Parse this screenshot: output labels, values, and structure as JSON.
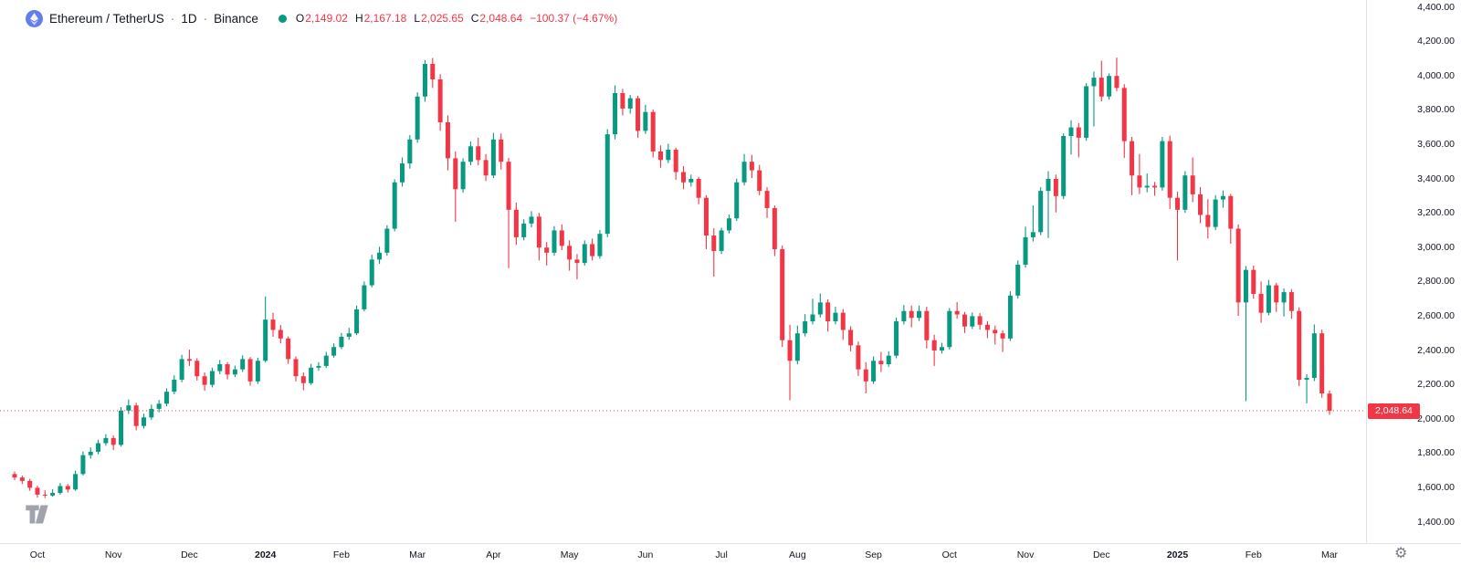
{
  "header": {
    "symbol": "Ethereum / TetherUS",
    "separator": "·",
    "interval": "1D",
    "exchange": "Binance",
    "legend": {
      "o_label": "O",
      "o_value": "2,149.02",
      "h_label": "H",
      "h_value": "2,167.18",
      "l_label": "L",
      "l_value": "2,025.65",
      "c_label": "C",
      "c_value": "2,048.64",
      "change": "−100.37 (−4.67%)"
    }
  },
  "colors": {
    "up": "#089981",
    "down": "#F23645",
    "text": "#131722",
    "muted": "#787B86",
    "border": "#E0E3EB",
    "badge_bg": "#F23645",
    "badge_text": "#FFFFFF",
    "eth_icon_bg": "#627EEA",
    "background": "#FFFFFF"
  },
  "footer": {
    "settings_icon": "gear-icon",
    "watermark": "tradingview-logo"
  },
  "chart_data": {
    "type": "candlestick",
    "title": "Ethereum / TetherUS, 1D, Binance",
    "x_range": "Oct 2023 – Mar 2025",
    "ylim": [
      1400,
      4400
    ],
    "y_tick_step": 200,
    "grid": false,
    "current_price": 2048.64,
    "current_price_label": "2,048.64",
    "last_candle": {
      "open": 2149.02,
      "high": 2167.18,
      "low": 2025.65,
      "close": 2048.64,
      "change": -100.37,
      "change_pct": -4.67
    },
    "y_ticks": [
      {
        "label": "4,400.00",
        "value": 4400
      },
      {
        "label": "4,200.00",
        "value": 4200
      },
      {
        "label": "4,000.00",
        "value": 4000
      },
      {
        "label": "3,800.00",
        "value": 3800
      },
      {
        "label": "3,600.00",
        "value": 3600
      },
      {
        "label": "3,400.00",
        "value": 3400
      },
      {
        "label": "3,200.00",
        "value": 3200
      },
      {
        "label": "3,000.00",
        "value": 3000
      },
      {
        "label": "2,800.00",
        "value": 2800
      },
      {
        "label": "2,600.00",
        "value": 2600
      },
      {
        "label": "2,400.00",
        "value": 2400
      },
      {
        "label": "2,200.00",
        "value": 2200
      },
      {
        "label": "2,000.00",
        "value": 2000
      },
      {
        "label": "1,800.00",
        "value": 1800
      },
      {
        "label": "1,600.00",
        "value": 1600
      },
      {
        "label": "1,400.00",
        "value": 1400
      }
    ],
    "x_ticks": [
      {
        "text": "Oct",
        "candle": 3
      },
      {
        "text": "Nov",
        "candle": 13
      },
      {
        "text": "Dec",
        "candle": 23
      },
      {
        "text": "2024",
        "candle": 33,
        "year": true
      },
      {
        "text": "Feb",
        "candle": 43
      },
      {
        "text": "Mar",
        "candle": 53
      },
      {
        "text": "Apr",
        "candle": 63
      },
      {
        "text": "May",
        "candle": 73
      },
      {
        "text": "Jun",
        "candle": 83
      },
      {
        "text": "Jul",
        "candle": 93
      },
      {
        "text": "Aug",
        "candle": 103
      },
      {
        "text": "Sep",
        "candle": 113
      },
      {
        "text": "Oct",
        "candle": 123
      },
      {
        "text": "Nov",
        "candle": 133
      },
      {
        "text": "Dec",
        "candle": 143
      },
      {
        "text": "2025",
        "candle": 153,
        "year": true
      },
      {
        "text": "Feb",
        "candle": 163
      },
      {
        "text": "Mar",
        "candle": 173
      }
    ],
    "candles": [
      [
        1680,
        1695,
        1645,
        1660
      ],
      [
        1660,
        1672,
        1622,
        1640
      ],
      [
        1640,
        1652,
        1583,
        1600
      ],
      [
        1600,
        1612,
        1543,
        1560
      ],
      [
        1560,
        1585,
        1540,
        1555
      ],
      [
        1555,
        1592,
        1548,
        1570
      ],
      [
        1570,
        1628,
        1560,
        1610
      ],
      [
        1610,
        1622,
        1572,
        1590
      ],
      [
        1590,
        1700,
        1582,
        1680
      ],
      [
        1680,
        1812,
        1672,
        1790
      ],
      [
        1790,
        1835,
        1770,
        1810
      ],
      [
        1810,
        1880,
        1795,
        1860
      ],
      [
        1860,
        1912,
        1845,
        1890
      ],
      [
        1890,
        1905,
        1820,
        1850
      ],
      [
        1850,
        2070,
        1840,
        2050
      ],
      [
        2050,
        2115,
        2030,
        2080
      ],
      [
        2080,
        2095,
        1935,
        1960
      ],
      [
        1960,
        2032,
        1945,
        2010
      ],
      [
        2010,
        2085,
        1995,
        2060
      ],
      [
        2060,
        2112,
        2040,
        2090
      ],
      [
        2090,
        2180,
        2075,
        2160
      ],
      [
        2160,
        2255,
        2145,
        2230
      ],
      [
        2230,
        2375,
        2215,
        2350
      ],
      [
        2350,
        2405,
        2310,
        2340
      ],
      [
        2340,
        2355,
        2225,
        2250
      ],
      [
        2250,
        2272,
        2165,
        2200
      ],
      [
        2200,
        2300,
        2185,
        2280
      ],
      [
        2280,
        2345,
        2262,
        2320
      ],
      [
        2320,
        2332,
        2232,
        2260
      ],
      [
        2260,
        2312,
        2245,
        2290
      ],
      [
        2290,
        2372,
        2275,
        2350
      ],
      [
        2350,
        2362,
        2195,
        2220
      ],
      [
        2220,
        2358,
        2205,
        2340
      ],
      [
        2340,
        2715,
        2330,
        2580
      ],
      [
        2580,
        2620,
        2480,
        2520
      ],
      [
        2520,
        2548,
        2442,
        2470
      ],
      [
        2470,
        2482,
        2322,
        2350
      ],
      [
        2350,
        2365,
        2220,
        2250
      ],
      [
        2250,
        2272,
        2168,
        2210
      ],
      [
        2210,
        2322,
        2200,
        2300
      ],
      [
        2300,
        2332,
        2282,
        2310
      ],
      [
        2310,
        2392,
        2298,
        2370
      ],
      [
        2370,
        2442,
        2358,
        2420
      ],
      [
        2420,
        2502,
        2408,
        2480
      ],
      [
        2480,
        2532,
        2462,
        2500
      ],
      [
        2500,
        2662,
        2490,
        2640
      ],
      [
        2640,
        2802,
        2628,
        2780
      ],
      [
        2780,
        2958,
        2768,
        2930
      ],
      [
        2930,
        3005,
        2905,
        2970
      ],
      [
        2970,
        3130,
        2952,
        3110
      ],
      [
        3110,
        3398,
        3095,
        3380
      ],
      [
        3380,
        3525,
        3355,
        3490
      ],
      [
        3490,
        3655,
        3460,
        3630
      ],
      [
        3630,
        3905,
        3610,
        3880
      ],
      [
        3880,
        4093,
        3850,
        4070
      ],
      [
        4070,
        4105,
        3930,
        3980
      ],
      [
        3980,
        4010,
        3680,
        3730
      ],
      [
        3730,
        3770,
        3450,
        3520
      ],
      [
        3520,
        3560,
        3150,
        3340
      ],
      [
        3340,
        3520,
        3320,
        3500
      ],
      [
        3500,
        3618,
        3480,
        3590
      ],
      [
        3590,
        3640,
        3480,
        3510
      ],
      [
        3510,
        3545,
        3388,
        3420
      ],
      [
        3420,
        3668,
        3405,
        3630
      ],
      [
        3630,
        3665,
        3455,
        3500
      ],
      [
        3500,
        3522,
        2880,
        3220
      ],
      [
        3220,
        3262,
        3015,
        3060
      ],
      [
        3060,
        3165,
        3042,
        3140
      ],
      [
        3140,
        3212,
        3118,
        3180
      ],
      [
        3180,
        3202,
        2925,
        3000
      ],
      [
        3000,
        3032,
        2895,
        2970
      ],
      [
        2970,
        3125,
        2952,
        3100
      ],
      [
        3100,
        3135,
        2985,
        3010
      ],
      [
        3010,
        3042,
        2865,
        2930
      ],
      [
        2930,
        2962,
        2815,
        2910
      ],
      [
        2910,
        3042,
        2895,
        3020
      ],
      [
        3020,
        3052,
        2925,
        2950
      ],
      [
        2950,
        3102,
        2935,
        3080
      ],
      [
        3080,
        3690,
        3060,
        3660
      ],
      [
        3660,
        3945,
        3630,
        3900
      ],
      [
        3900,
        3925,
        3770,
        3810
      ],
      [
        3810,
        3890,
        3780,
        3870
      ],
      [
        3870,
        3885,
        3640,
        3680
      ],
      [
        3680,
        3832,
        3662,
        3790
      ],
      [
        3790,
        3805,
        3525,
        3560
      ],
      [
        3560,
        3595,
        3465,
        3510
      ],
      [
        3510,
        3605,
        3492,
        3570
      ],
      [
        3570,
        3582,
        3395,
        3440
      ],
      [
        3440,
        3475,
        3340,
        3380
      ],
      [
        3380,
        3425,
        3355,
        3400
      ],
      [
        3400,
        3412,
        3252,
        3290
      ],
      [
        3290,
        3305,
        2990,
        3070
      ],
      [
        3070,
        3112,
        2830,
        2980
      ],
      [
        2980,
        3115,
        2962,
        3100
      ],
      [
        3100,
        3192,
        3082,
        3170
      ],
      [
        3170,
        3402,
        3155,
        3380
      ],
      [
        3380,
        3545,
        3362,
        3500
      ],
      [
        3500,
        3540,
        3405,
        3450
      ],
      [
        3450,
        3482,
        3305,
        3330
      ],
      [
        3330,
        3352,
        3172,
        3230
      ],
      [
        3230,
        3245,
        2950,
        2990
      ],
      [
        2990,
        3012,
        2420,
        2460
      ],
      [
        2460,
        2550,
        2110,
        2340
      ],
      [
        2340,
        2545,
        2320,
        2500
      ],
      [
        2500,
        2612,
        2482,
        2570
      ],
      [
        2570,
        2702,
        2552,
        2610
      ],
      [
        2610,
        2732,
        2592,
        2680
      ],
      [
        2680,
        2698,
        2510,
        2570
      ],
      [
        2570,
        2655,
        2552,
        2620
      ],
      [
        2620,
        2642,
        2462,
        2520
      ],
      [
        2520,
        2542,
        2395,
        2430
      ],
      [
        2430,
        2452,
        2252,
        2290
      ],
      [
        2290,
        2332,
        2150,
        2220
      ],
      [
        2220,
        2365,
        2205,
        2340
      ],
      [
        2340,
        2392,
        2275,
        2320
      ],
      [
        2320,
        2395,
        2305,
        2370
      ],
      [
        2370,
        2592,
        2355,
        2570
      ],
      [
        2570,
        2665,
        2552,
        2630
      ],
      [
        2630,
        2662,
        2535,
        2590
      ],
      [
        2590,
        2662,
        2572,
        2630
      ],
      [
        2630,
        2655,
        2412,
        2460
      ],
      [
        2460,
        2492,
        2310,
        2400
      ],
      [
        2400,
        2445,
        2382,
        2420
      ],
      [
        2420,
        2648,
        2405,
        2630
      ],
      [
        2630,
        2682,
        2585,
        2610
      ],
      [
        2610,
        2625,
        2502,
        2540
      ],
      [
        2540,
        2622,
        2525,
        2600
      ],
      [
        2600,
        2618,
        2522,
        2550
      ],
      [
        2550,
        2572,
        2472,
        2520
      ],
      [
        2520,
        2545,
        2435,
        2500
      ],
      [
        2500,
        2518,
        2392,
        2470
      ],
      [
        2470,
        2745,
        2455,
        2720
      ],
      [
        2720,
        2925,
        2702,
        2900
      ],
      [
        2900,
        3122,
        2882,
        3060
      ],
      [
        3060,
        3245,
        3035,
        3090
      ],
      [
        3090,
        3352,
        3072,
        3330
      ],
      [
        3330,
        3445,
        3055,
        3400
      ],
      [
        3400,
        3425,
        3205,
        3300
      ],
      [
        3300,
        3665,
        3282,
        3650
      ],
      [
        3650,
        3742,
        3542,
        3700
      ],
      [
        3700,
        3725,
        3525,
        3640
      ],
      [
        3640,
        3958,
        3622,
        3940
      ],
      [
        3940,
        4025,
        3705,
        3990
      ],
      [
        3990,
        4088,
        3852,
        3880
      ],
      [
        3880,
        4015,
        3862,
        4000
      ],
      [
        4000,
        4107,
        3912,
        3930
      ],
      [
        3930,
        3952,
        3522,
        3620
      ],
      [
        3620,
        3645,
        3305,
        3420
      ],
      [
        3420,
        3545,
        3312,
        3350
      ],
      [
        3350,
        3432,
        3322,
        3360
      ],
      [
        3360,
        3382,
        3302,
        3350
      ],
      [
        3350,
        3645,
        3332,
        3620
      ],
      [
        3620,
        3652,
        3225,
        3290
      ],
      [
        3290,
        3325,
        2925,
        3220
      ],
      [
        3220,
        3445,
        3202,
        3420
      ],
      [
        3420,
        3525,
        3265,
        3310
      ],
      [
        3310,
        3352,
        3142,
        3190
      ],
      [
        3190,
        3282,
        3052,
        3120
      ],
      [
        3120,
        3305,
        3102,
        3280
      ],
      [
        3280,
        3332,
        3232,
        3300
      ],
      [
        3300,
        3312,
        3022,
        3110
      ],
      [
        3110,
        3135,
        2602,
        2680
      ],
      [
        2680,
        2892,
        2105,
        2870
      ],
      [
        2870,
        2895,
        2702,
        2730
      ],
      [
        2730,
        2802,
        2562,
        2620
      ],
      [
        2620,
        2812,
        2605,
        2780
      ],
      [
        2780,
        2795,
        2625,
        2680
      ],
      [
        2680,
        2762,
        2598,
        2740
      ],
      [
        2740,
        2758,
        2585,
        2630
      ],
      [
        2630,
        2652,
        2192,
        2230
      ],
      [
        2230,
        2262,
        2092,
        2240
      ],
      [
        2240,
        2552,
        2222,
        2500
      ],
      [
        2500,
        2522,
        2125,
        2150
      ],
      [
        2149.02,
        2167.18,
        2025.65,
        2048.64
      ]
    ]
  }
}
